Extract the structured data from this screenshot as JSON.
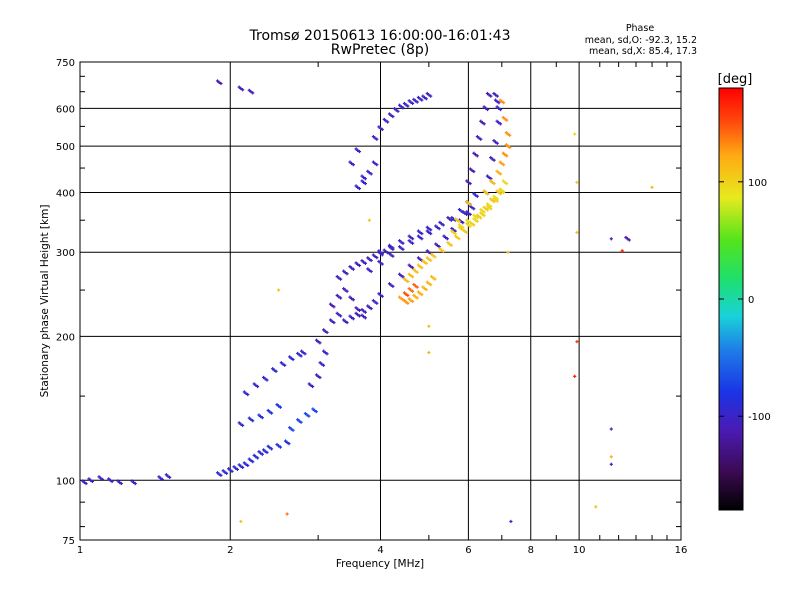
{
  "chart_data": {
    "type": "scatter",
    "title": "Tromsø 20150613 16:00:00-16:01:43",
    "subtitle": "RwPretec (8p)",
    "phase_header": "Phase",
    "phase_stats": [
      "mean, sd,O: -92.3, 15.2",
      "mean, sd,X:  85.4, 17.3"
    ],
    "xlabel": "Frequency [MHz]",
    "ylabel": "Stationary phase Virtual Height [km]",
    "x_scale": "log",
    "y_scale": "log",
    "xlim": [
      1,
      16
    ],
    "ylim": [
      75,
      750
    ],
    "x_ticks": [
      1,
      2,
      4,
      6,
      8,
      10,
      16
    ],
    "x_tick_labels": [
      "1",
      "2",
      "4",
      "6",
      "8",
      "10",
      "16"
    ],
    "y_ticks": [
      75,
      100,
      200,
      300,
      400,
      500,
      600,
      750
    ],
    "y_tick_labels": [
      "75",
      "100",
      "200",
      "300",
      "400",
      "500",
      "600",
      "750"
    ],
    "grid": true,
    "minor_x_ticks": [
      3,
      5,
      7,
      9,
      11,
      12,
      13,
      14,
      15
    ],
    "minor_y_ticks": [
      80,
      90,
      150,
      250,
      350,
      450,
      550,
      650,
      700
    ],
    "colorbar": {
      "label": "[deg]",
      "range": [
        -180,
        180
      ],
      "ticks": [
        -100,
        0,
        100
      ],
      "tick_labels": [
        "-100",
        "0",
        "100"
      ],
      "colormap": "rainbow"
    },
    "series": [
      {
        "points_x": [
          1.02,
          1.05,
          1.1,
          1.15,
          1.2,
          1.28,
          1.45,
          1.5,
          1.9,
          1.95,
          2.0,
          2.05,
          2.1,
          2.15,
          2.2,
          2.25,
          2.3,
          2.35,
          2.4,
          2.5,
          2.6,
          2.1,
          2.2,
          2.3,
          2.4,
          2.5,
          2.15,
          2.25,
          2.35,
          2.45,
          2.55,
          2.65,
          2.75,
          2.8,
          2.65,
          2.75,
          2.85,
          2.95,
          2.9,
          3.0,
          3.05,
          3.1,
          3.0,
          3.1,
          3.2,
          3.3,
          3.2,
          3.3,
          3.4,
          3.5,
          3.6,
          3.7,
          3.3,
          3.4,
          3.5,
          3.6,
          3.7,
          3.8,
          3.9,
          4.0,
          4.1,
          4.2,
          3.4,
          3.5,
          3.6,
          3.7,
          3.8,
          3.9,
          4.0,
          4.2,
          4.4,
          4.6,
          4.8,
          5.0,
          5.2,
          5.4,
          5.6,
          5.8,
          6.0,
          3.8,
          4.0,
          4.2,
          4.4,
          4.6,
          4.8,
          5.0,
          5.2,
          5.5,
          5.8,
          6.0,
          6.2,
          4.0,
          4.2,
          4.4,
          4.6,
          4.8,
          5.0,
          5.3,
          5.6,
          5.9,
          6.1,
          3.7,
          3.8,
          3.9,
          3.6,
          3.7,
          3.5,
          3.6,
          3.9,
          4.0,
          4.1,
          4.2,
          4.3,
          4.4,
          4.5,
          4.6,
          4.7,
          4.8,
          4.9,
          5.0,
          6.0,
          6.1,
          6.2,
          6.3,
          6.4,
          6.5,
          6.6,
          6.5,
          6.6,
          6.7,
          6.8,
          6.9,
          6.9,
          6.8,
          6.85,
          1.9,
          2.1,
          2.2,
          12.5
        ],
        "points_y": [
          99,
          100,
          101,
          100,
          99,
          99,
          101,
          102,
          103,
          104,
          105,
          106,
          107,
          108,
          110,
          112,
          114,
          115,
          117,
          118,
          120,
          131,
          134,
          136,
          139,
          143,
          152,
          158,
          163,
          170,
          175,
          180,
          183,
          185,
          128,
          133,
          137,
          140,
          158,
          165,
          175,
          185,
          195,
          205,
          215,
          222,
          232,
          242,
          250,
          240,
          228,
          220,
          265,
          272,
          278,
          283,
          286,
          290,
          294,
          298,
          301,
          306,
          215,
          219,
          222,
          226,
          230,
          236,
          244,
          256,
          268,
          280,
          290,
          300,
          310,
          322,
          334,
          348,
          362,
          275,
          285,
          296,
          306,
          315,
          322,
          330,
          338,
          352,
          366,
          380,
          395,
          300,
          308,
          315,
          322,
          330,
          336,
          344,
          352,
          362,
          372,
          420,
          440,
          460,
          410,
          430,
          460,
          490,
          520,
          545,
          565,
          580,
          595,
          605,
          610,
          618,
          622,
          628,
          632,
          640,
          420,
          445,
          480,
          520,
          560,
          600,
          640,
          400,
          430,
          470,
          510,
          560,
          600,
          640,
          620,
          680,
          660,
          650,
          320
        ],
        "phase_deg": [
          -100,
          -100,
          -100,
          -100,
          -100,
          -100,
          -100,
          -100,
          -95,
          -95,
          -95,
          -95,
          -95,
          -90,
          -90,
          -90,
          -90,
          -90,
          -85,
          -85,
          -85,
          -95,
          -90,
          -85,
          -85,
          -80,
          -95,
          -95,
          -95,
          -95,
          -95,
          -95,
          -95,
          -95,
          -70,
          -70,
          -70,
          -70,
          -100,
          -100,
          -100,
          -100,
          -105,
          -105,
          -105,
          -105,
          -110,
          -110,
          -110,
          -110,
          -110,
          -110,
          -105,
          -105,
          -105,
          -105,
          -105,
          -105,
          -105,
          -105,
          -105,
          -105,
          -105,
          -105,
          -105,
          -105,
          -105,
          -105,
          -105,
          -105,
          -105,
          -105,
          -105,
          -105,
          -105,
          -105,
          -105,
          -105,
          -105,
          -100,
          -100,
          -100,
          -100,
          -100,
          -100,
          -100,
          -100,
          -100,
          -100,
          -100,
          -100,
          -100,
          -100,
          -100,
          -100,
          -100,
          -100,
          -100,
          -100,
          -100,
          -100,
          -100,
          -100,
          -100,
          -100,
          -100,
          -100,
          -100,
          -100,
          -100,
          -100,
          -100,
          -100,
          -100,
          -100,
          -100,
          -100,
          -100,
          -100,
          -100,
          -110,
          -110,
          -110,
          -110,
          -110,
          -110,
          -110,
          -100,
          -100,
          -100,
          -100,
          -100,
          -100,
          -100,
          -100,
          -110,
          -110,
          -110,
          -110
        ]
      },
      {
        "points_x": [
          4.4,
          4.5,
          4.6,
          4.7,
          4.8,
          4.9,
          5.0,
          5.1,
          4.5,
          4.6,
          4.7,
          4.8,
          4.9,
          5.0,
          5.1,
          5.3,
          5.5,
          5.7,
          5.9,
          6.1,
          6.3,
          6.5,
          6.7,
          6.9,
          5.6,
          5.8,
          6.0,
          6.2,
          6.4,
          6.6,
          6.8,
          7.0,
          5.8,
          6.0,
          6.2,
          6.4,
          6.6,
          6.8,
          7.0,
          7.1,
          6.5,
          6.7,
          6.9,
          7.0,
          7.1,
          7.2,
          7.2,
          7.1,
          7.0,
          4.6,
          4.5,
          4.7,
          6.0,
          5.7
        ],
        "points_y": [
          240,
          236,
          238,
          242,
          246,
          252,
          258,
          265,
          262,
          268,
          274,
          280,
          286,
          290,
          295,
          303,
          312,
          322,
          332,
          344,
          356,
          370,
          385,
          400,
          330,
          336,
          342,
          350,
          360,
          372,
          386,
          402,
          340,
          348,
          356,
          366,
          376,
          390,
          404,
          420,
          400,
          420,
          440,
          460,
          480,
          500,
          530,
          570,
          620,
          250,
          245,
          255,
          380,
          350
        ],
        "phase_deg": [
          125,
          130,
          125,
          120,
          120,
          115,
          115,
          112,
          112,
          112,
          110,
          110,
          110,
          110,
          108,
          108,
          108,
          105,
          105,
          105,
          105,
          105,
          108,
          112,
          100,
          100,
          100,
          100,
          100,
          100,
          100,
          100,
          95,
          95,
          95,
          95,
          95,
          95,
          95,
          95,
          110,
          115,
          120,
          125,
          130,
          130,
          130,
          130,
          130,
          140,
          150,
          145,
          110,
          105
        ]
      }
    ],
    "outlier_points": [
      {
        "x": 9.8,
        "y": 530,
        "phase_deg": 100
      },
      {
        "x": 9.9,
        "y": 420,
        "phase_deg": 105
      },
      {
        "x": 9.9,
        "y": 330,
        "phase_deg": 110
      },
      {
        "x": 9.9,
        "y": 195,
        "phase_deg": 160
      },
      {
        "x": 9.8,
        "y": 165,
        "phase_deg": 170
      },
      {
        "x": 12.2,
        "y": 302,
        "phase_deg": 170
      },
      {
        "x": 11.6,
        "y": 320,
        "phase_deg": -110
      },
      {
        "x": 11.6,
        "y": 128,
        "phase_deg": -100
      },
      {
        "x": 11.6,
        "y": 112,
        "phase_deg": 120
      },
      {
        "x": 11.6,
        "y": 108,
        "phase_deg": -110
      },
      {
        "x": 10.8,
        "y": 88,
        "phase_deg": 110
      },
      {
        "x": 14.0,
        "y": 410,
        "phase_deg": 115
      },
      {
        "x": 7.3,
        "y": 82,
        "phase_deg": -100
      },
      {
        "x": 5.0,
        "y": 185,
        "phase_deg": 120
      },
      {
        "x": 5.0,
        "y": 210,
        "phase_deg": 115
      },
      {
        "x": 2.6,
        "y": 85,
        "phase_deg": 140
      },
      {
        "x": 2.1,
        "y": 82,
        "phase_deg": 110
      },
      {
        "x": 2.5,
        "y": 250,
        "phase_deg": 110
      },
      {
        "x": 7.2,
        "y": 300,
        "phase_deg": 110
      },
      {
        "x": 3.8,
        "y": 350,
        "phase_deg": 110
      }
    ]
  }
}
